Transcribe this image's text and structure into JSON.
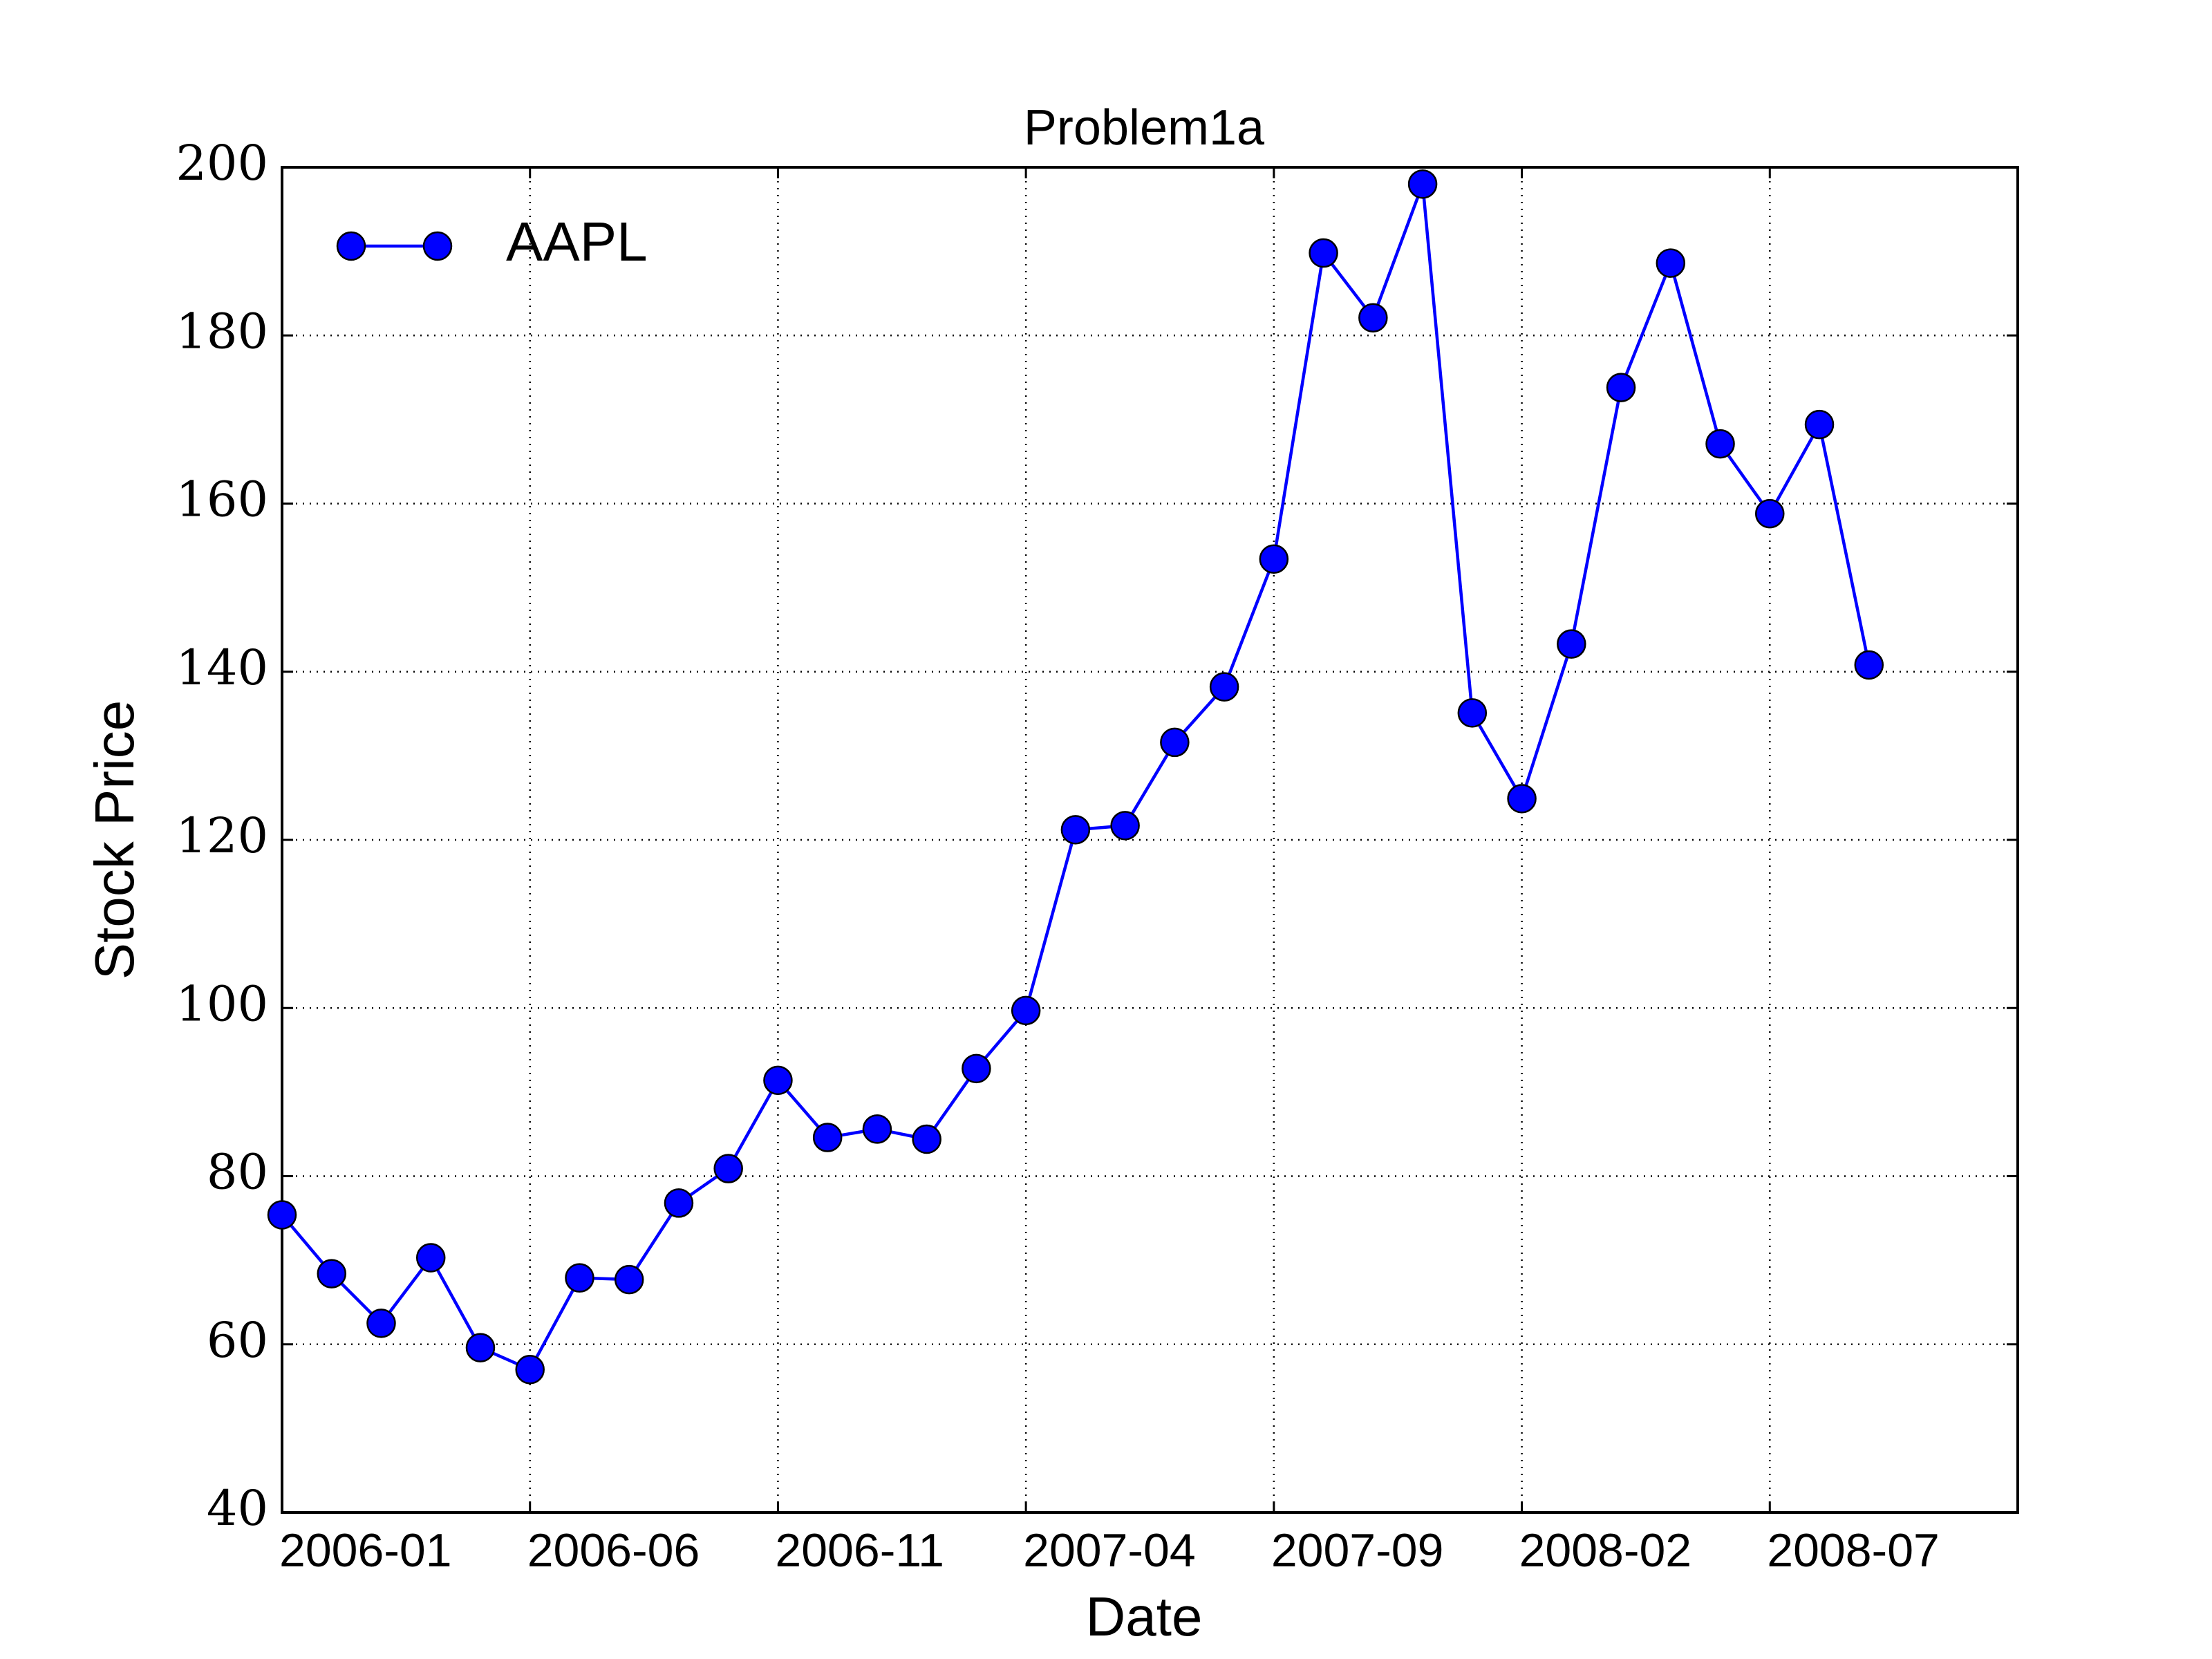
{
  "chart_data": {
    "type": "line",
    "title": "Problem1a",
    "xlabel": "Date",
    "ylabel": "Stock Price",
    "x": [
      0,
      1,
      2,
      3,
      4,
      5,
      6,
      7,
      8,
      9,
      10,
      11,
      12,
      13,
      14,
      15,
      16,
      17,
      18,
      19,
      20,
      21,
      22,
      23,
      24,
      25,
      26,
      27,
      28,
      29,
      30,
      31,
      32
    ],
    "series": [
      {
        "name": "AAPL",
        "color": "#0000ff",
        "values": [
          75.4,
          68.4,
          62.5,
          70.3,
          59.6,
          57.0,
          67.9,
          67.7,
          76.8,
          80.9,
          91.4,
          84.6,
          85.6,
          84.4,
          92.8,
          99.7,
          121.2,
          121.7,
          131.6,
          138.2,
          153.4,
          189.8,
          182.1,
          198.0,
          135.1,
          124.9,
          143.3,
          173.8,
          188.6,
          167.1,
          158.8,
          169.4,
          140.8
        ]
      }
    ],
    "xlim": [
      0,
      35
    ],
    "xticks": [
      {
        "value": 0,
        "label": "2006-01"
      },
      {
        "value": 5,
        "label": "2006-06"
      },
      {
        "value": 10,
        "label": "2006-11"
      },
      {
        "value": 15,
        "label": "2007-04"
      },
      {
        "value": 20,
        "label": "2007-09"
      },
      {
        "value": 25,
        "label": "2008-02"
      },
      {
        "value": 30,
        "label": "2008-07"
      }
    ],
    "ylim": [
      40,
      200
    ],
    "yticks": [
      40,
      60,
      80,
      100,
      120,
      140,
      160,
      180,
      200
    ],
    "grid": true,
    "legend": "upper left"
  }
}
